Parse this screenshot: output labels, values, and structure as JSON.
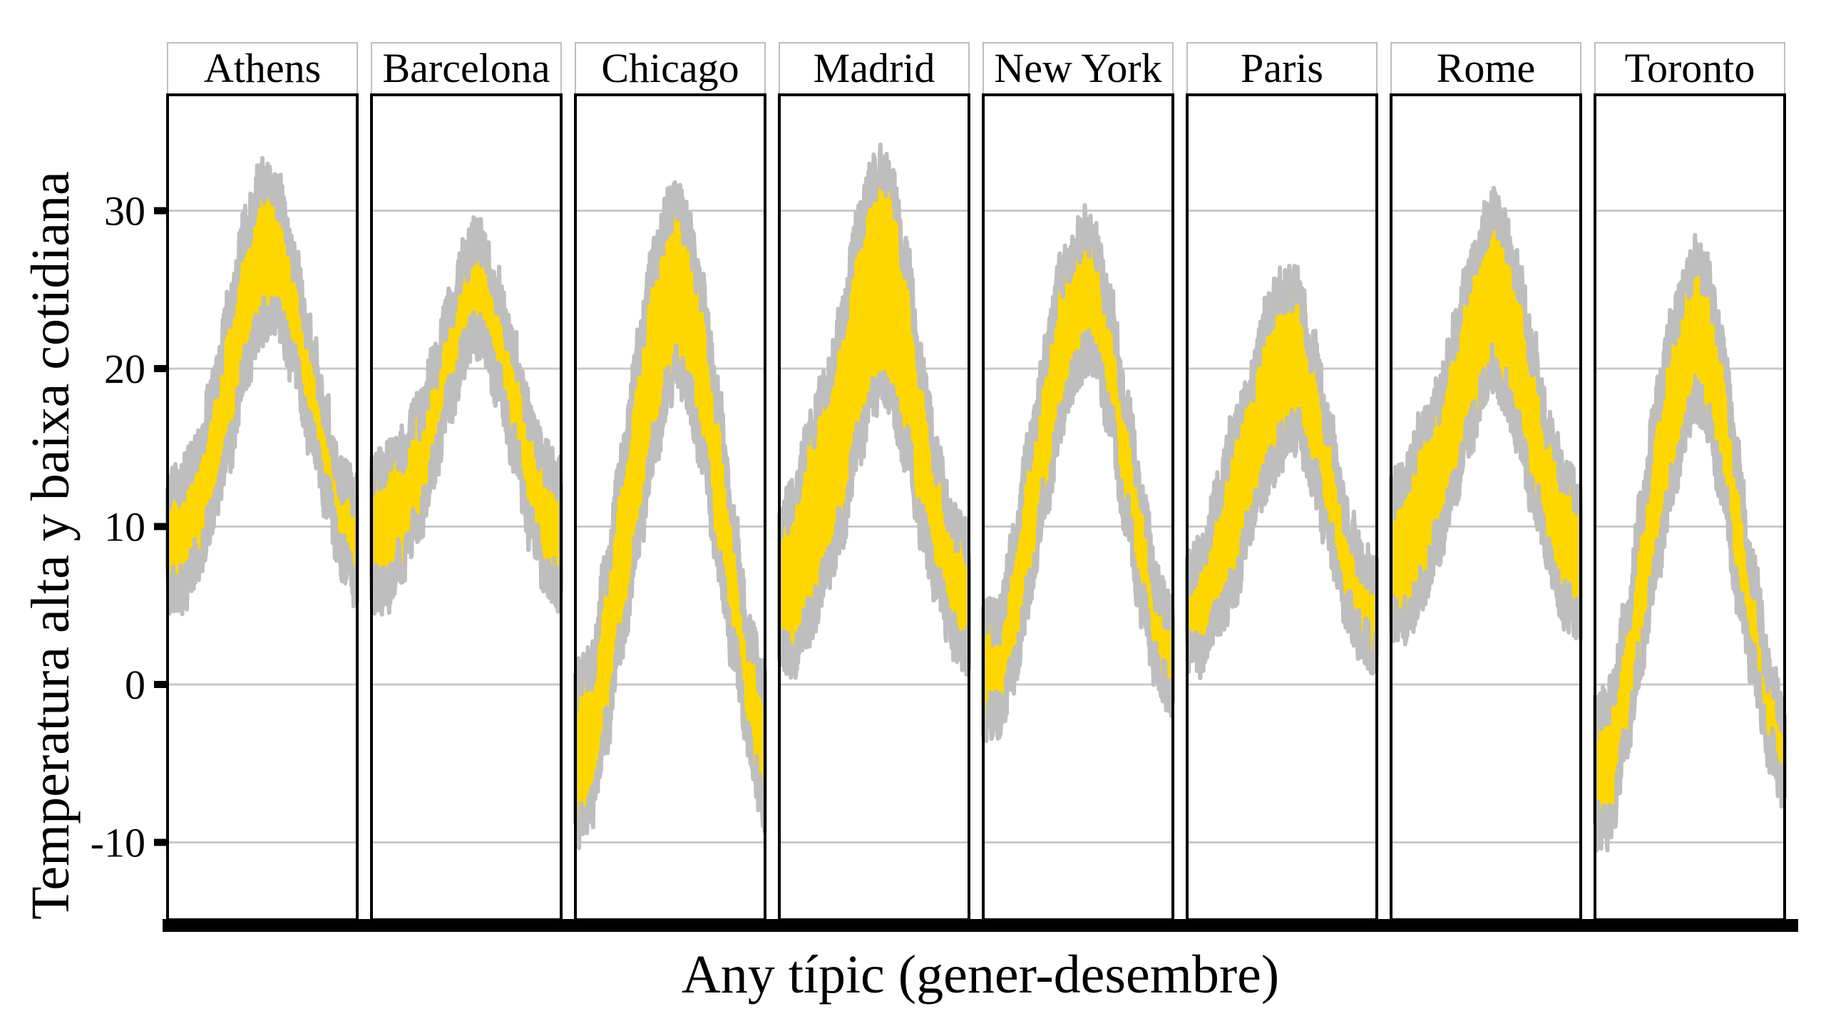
{
  "chart_data": {
    "type": "area",
    "layout": "facets",
    "title": "",
    "xlabel": "Any típic (gener-desembre)",
    "ylabel": "Temperatura alta y baixa cotidiana",
    "ylim": [
      -15,
      37
    ],
    "yticks": [
      {
        "value": -10,
        "label": "-10"
      },
      {
        "value": 0,
        "label": "0"
      },
      {
        "value": 10,
        "label": "10"
      },
      {
        "value": 20,
        "label": "20"
      },
      {
        "value": 30,
        "label": "30"
      }
    ],
    "xlim": [
      1,
      365
    ],
    "grid": {
      "horizontal": true,
      "vertical": false
    },
    "colors": {
      "band": "#FFD700",
      "band_edge": "#BEBEBE",
      "grid": "#C8C8C8",
      "frame": "#000000"
    },
    "facets": [
      {
        "city": "Athens",
        "x": [
          1,
          30,
          60,
          91,
          121,
          152,
          182,
          196,
          213,
          244,
          274,
          305,
          335,
          365
        ],
        "high": [
          12,
          13,
          15,
          19,
          24,
          29,
          32,
          32,
          31,
          27,
          22,
          17,
          13,
          12
        ],
        "low": [
          6,
          6,
          8,
          11,
          15,
          20,
          23,
          23,
          23,
          20,
          16,
          12,
          8,
          6
        ]
      },
      {
        "city": "Barcelona",
        "x": [
          1,
          30,
          60,
          91,
          121,
          152,
          182,
          196,
          213,
          244,
          274,
          305,
          335,
          365
        ],
        "high": [
          13,
          14,
          15,
          17,
          20,
          24,
          27,
          28,
          28,
          25,
          21,
          17,
          14,
          13
        ],
        "low": [
          6,
          6,
          8,
          10,
          14,
          18,
          21,
          22,
          22,
          19,
          15,
          10,
          7,
          6
        ]
      },
      {
        "city": "Chicago",
        "x": [
          1,
          30,
          60,
          91,
          121,
          152,
          182,
          196,
          213,
          244,
          274,
          305,
          335,
          365
        ],
        "high": [
          0,
          1,
          7,
          14,
          21,
          27,
          30,
          31,
          29,
          25,
          18,
          10,
          3,
          0
        ],
        "low": [
          -9,
          -8,
          -3,
          3,
          9,
          15,
          19,
          20,
          19,
          15,
          8,
          2,
          -4,
          -8
        ]
      },
      {
        "city": "Madrid",
        "x": [
          1,
          30,
          60,
          91,
          121,
          152,
          182,
          196,
          213,
          244,
          274,
          305,
          335,
          365
        ],
        "high": [
          10,
          12,
          16,
          19,
          23,
          29,
          32,
          33,
          32,
          27,
          20,
          14,
          10,
          9
        ],
        "low": [
          2,
          2,
          4,
          7,
          10,
          15,
          18,
          19,
          18,
          15,
          10,
          6,
          3,
          2
        ]
      },
      {
        "city": "New York",
        "x": [
          1,
          30,
          60,
          91,
          121,
          152,
          182,
          196,
          213,
          244,
          274,
          305,
          335,
          365
        ],
        "high": [
          4,
          4,
          9,
          15,
          21,
          26,
          28,
          29,
          28,
          24,
          18,
          12,
          6,
          4
        ],
        "low": [
          -2,
          -2,
          1,
          6,
          12,
          17,
          20,
          21,
          21,
          17,
          11,
          5,
          1,
          -1
        ]
      },
      {
        "city": "Paris",
        "x": [
          1,
          30,
          60,
          91,
          121,
          152,
          182,
          196,
          213,
          244,
          274,
          305,
          335,
          365
        ],
        "high": [
          7,
          8,
          12,
          16,
          19,
          23,
          25,
          25,
          25,
          21,
          16,
          11,
          8,
          7
        ],
        "low": [
          2,
          2,
          4,
          6,
          10,
          13,
          15,
          16,
          16,
          13,
          9,
          5,
          3,
          2
        ]
      },
      {
        "city": "Rome",
        "x": [
          1,
          30,
          60,
          91,
          121,
          152,
          182,
          196,
          213,
          244,
          274,
          305,
          335,
          365
        ],
        "high": [
          12,
          13,
          16,
          18,
          22,
          26,
          29,
          30,
          29,
          26,
          21,
          16,
          13,
          12
        ],
        "low": [
          4,
          4,
          6,
          9,
          12,
          16,
          19,
          20,
          19,
          16,
          12,
          8,
          5,
          4
        ]
      },
      {
        "city": "Toronto",
        "x": [
          1,
          30,
          60,
          91,
          121,
          152,
          182,
          196,
          213,
          244,
          274,
          305,
          335,
          365
        ],
        "high": [
          -2,
          -1,
          4,
          11,
          18,
          23,
          26,
          27,
          26,
          22,
          14,
          7,
          1,
          -2
        ],
        "low": [
          -9,
          -9,
          -4,
          2,
          8,
          13,
          17,
          18,
          17,
          13,
          6,
          1,
          -4,
          -7
        ]
      }
    ]
  }
}
